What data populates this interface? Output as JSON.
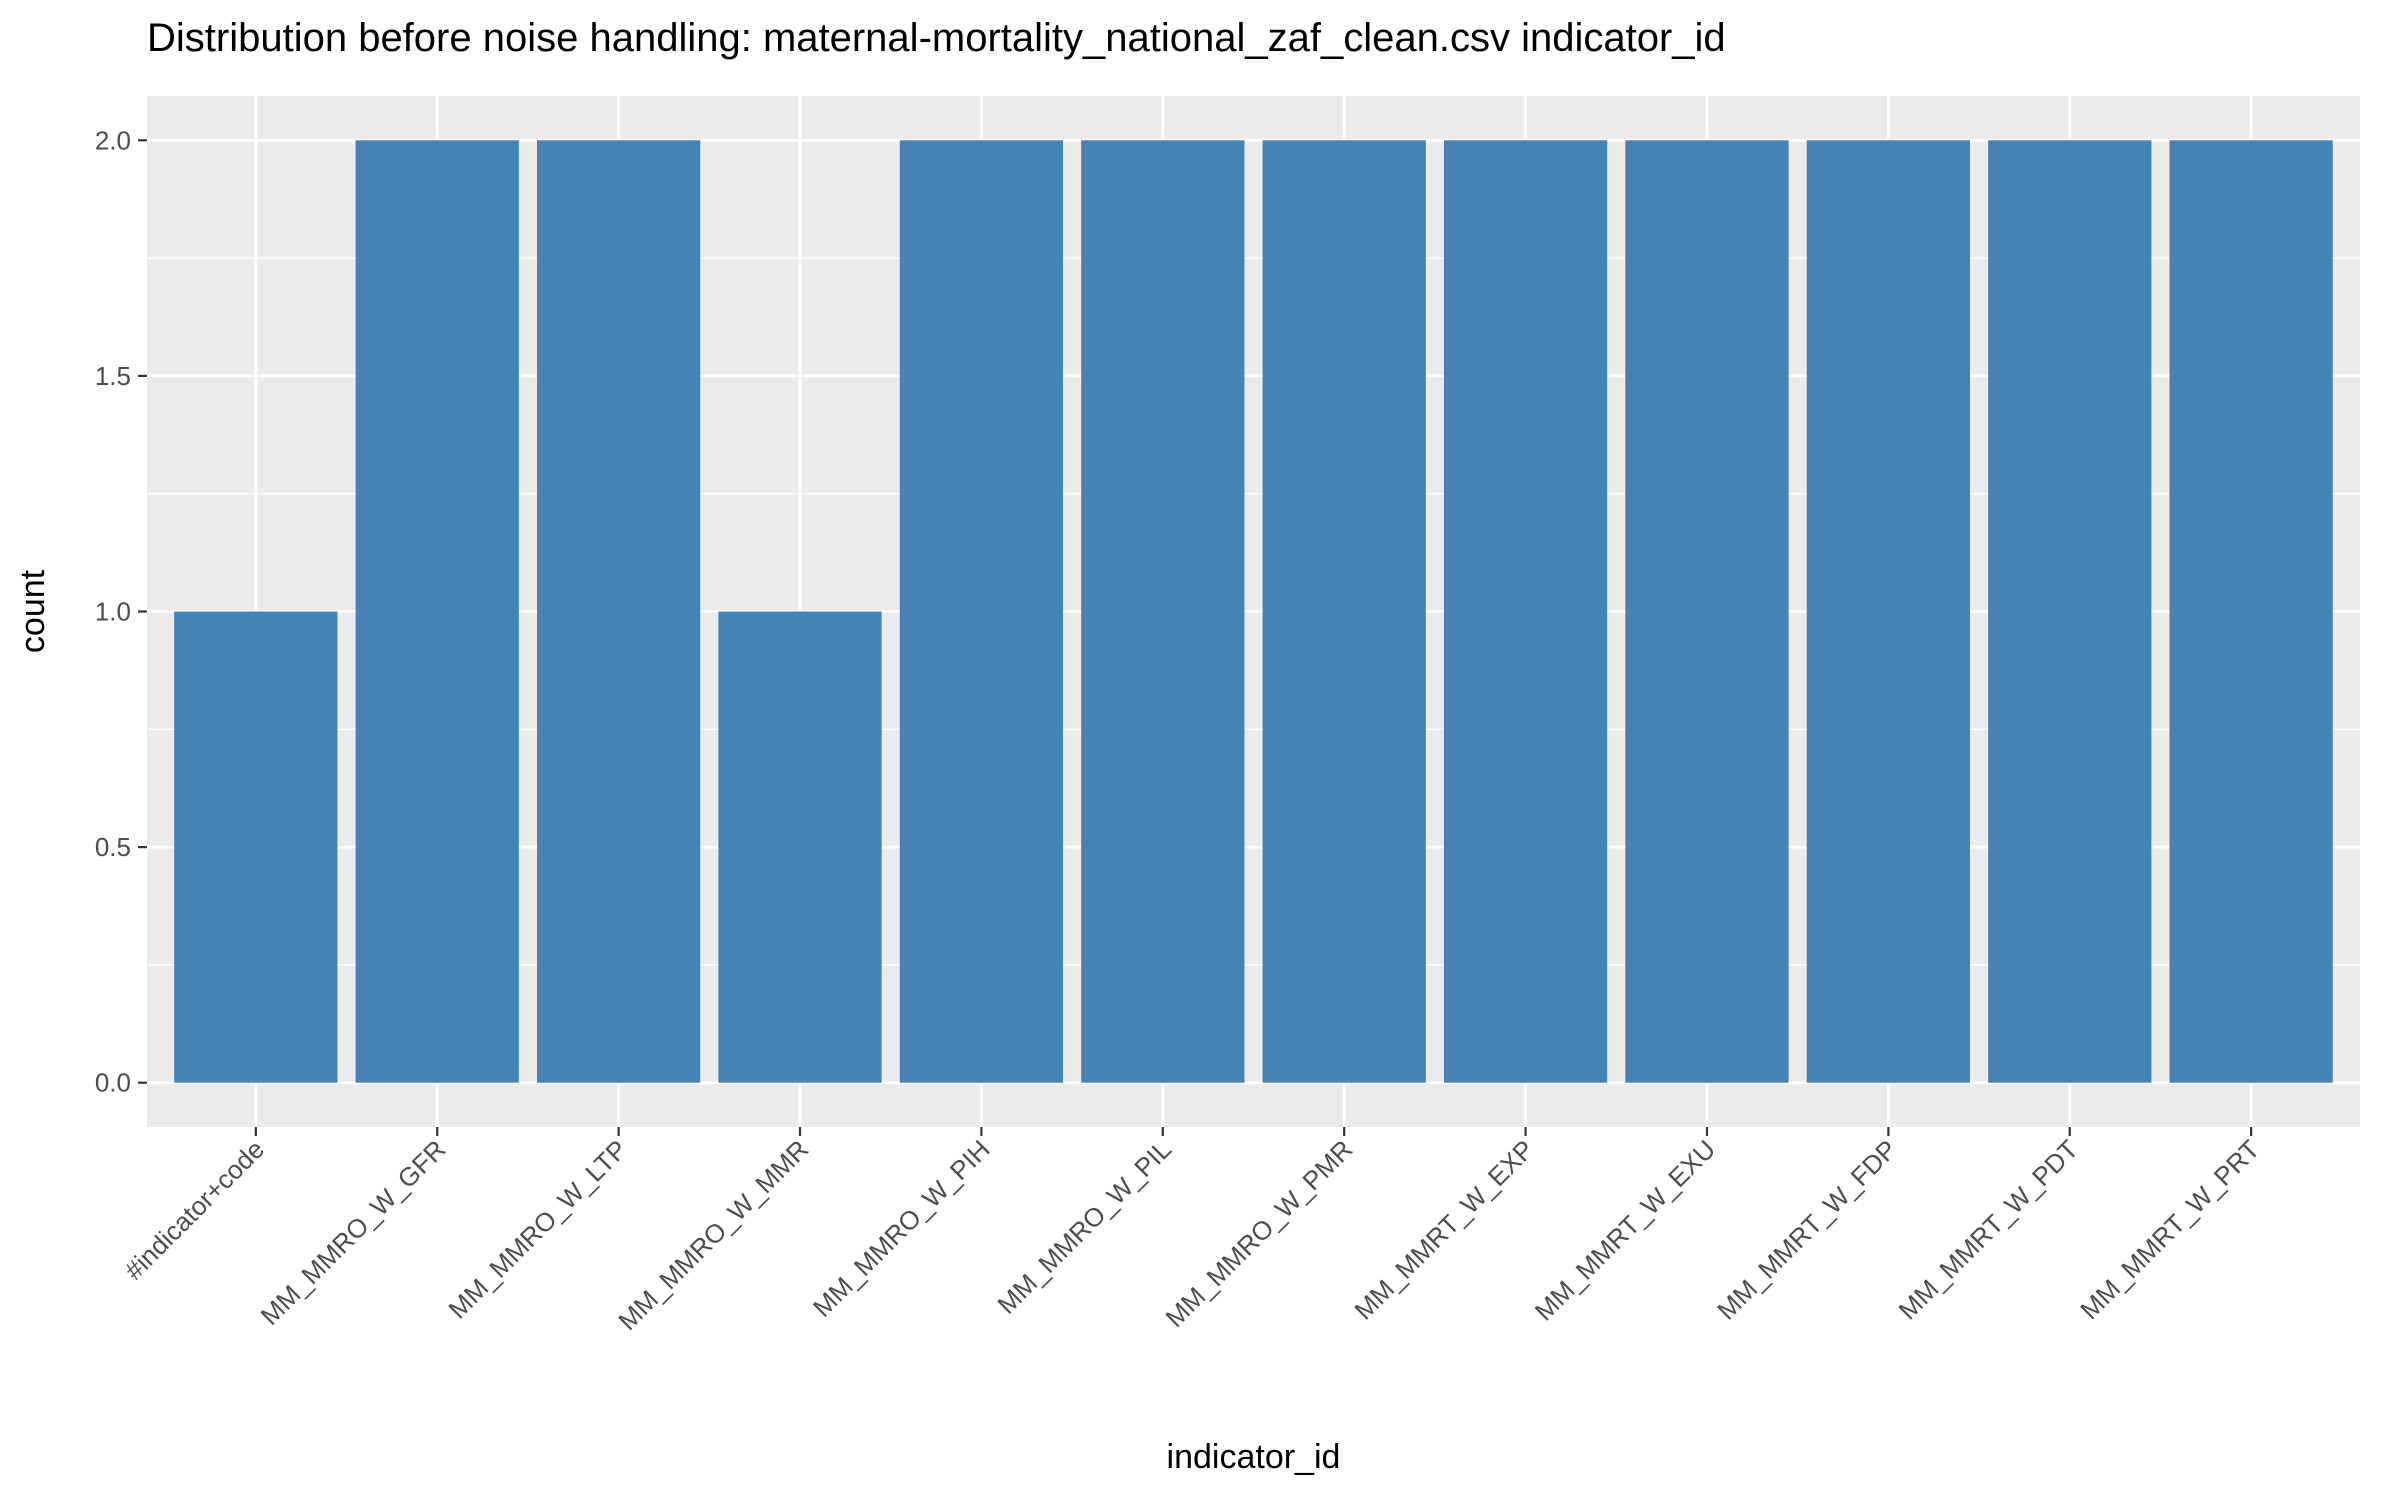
{
  "chart_data": {
    "type": "bar",
    "title": "Distribution before noise handling: maternal-mortality_national_zaf_clean.csv indicator_id",
    "xlabel": "indicator_id",
    "ylabel": "count",
    "categories": [
      "#indicator+code",
      "MM_MMRO_W_GFR",
      "MM_MMRO_W_LTP",
      "MM_MMRO_W_MMR",
      "MM_MMRO_W_PIH",
      "MM_MMRO_W_PIL",
      "MM_MMRO_W_PMR",
      "MM_MMRT_W_EXP",
      "MM_MMRT_W_EXU",
      "MM_MMRT_W_FDP",
      "MM_MMRT_W_PDT",
      "MM_MMRT_W_PRT"
    ],
    "values": [
      1,
      2,
      2,
      1,
      2,
      2,
      2,
      2,
      2,
      2,
      2,
      2
    ],
    "ylim": [
      -0.094,
      2.094
    ],
    "y_ticks": [
      "0.0",
      "0.5",
      "1.0",
      "1.5",
      "2.0"
    ],
    "grid": true,
    "colors": {
      "bar": "#4682b4",
      "panel": "#ebebeb",
      "grid": "#ffffff",
      "tick": "#333333"
    }
  }
}
